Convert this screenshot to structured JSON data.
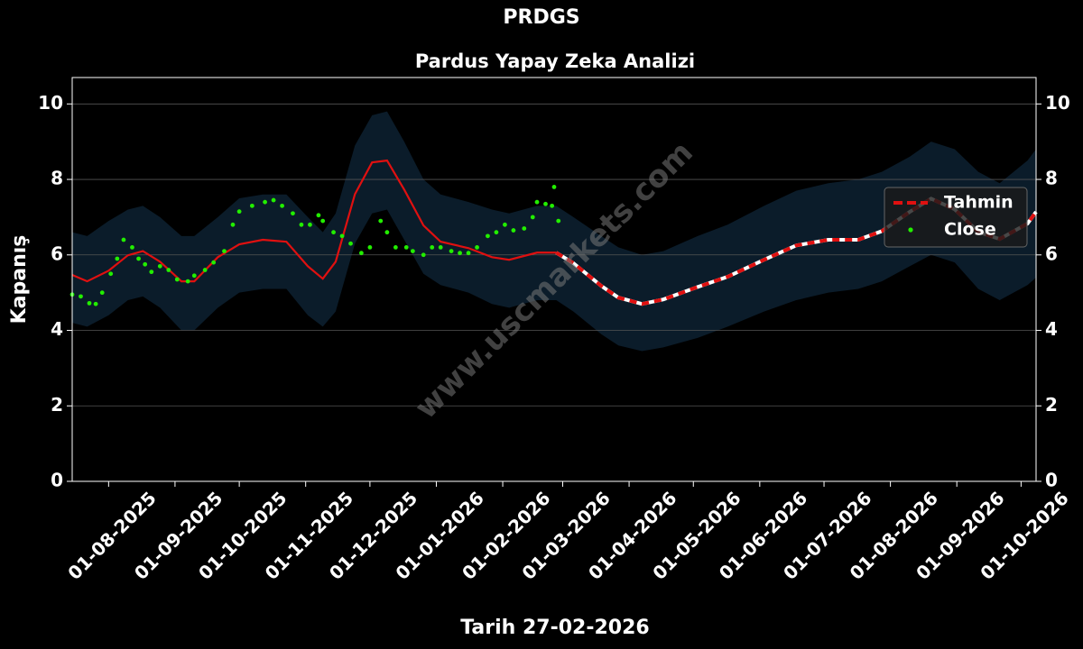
{
  "chart_data": {
    "type": "line",
    "title": "PRDGS",
    "subtitle": "Pardus Yapay Zeka Analizi",
    "xlabel": "Tarih 27-02-2026",
    "ylabel": "Kapanış",
    "watermark": "www.uscmarkets.com",
    "background": "#000000",
    "grid": true,
    "legend": "upper right",
    "xlim": [
      "2025-07-15",
      "2026-10-08"
    ],
    "xticks": [
      {
        "value": "2025-08-01",
        "label": "01-08-2025"
      },
      {
        "value": "2025-09-01",
        "label": "01-09-2025"
      },
      {
        "value": "2025-10-01",
        "label": "01-10-2025"
      },
      {
        "value": "2025-11-01",
        "label": "01-11-2025"
      },
      {
        "value": "2025-12-01",
        "label": "01-12-2025"
      },
      {
        "value": "2026-01-01",
        "label": "01-01-2026"
      },
      {
        "value": "2026-02-01",
        "label": "01-02-2026"
      },
      {
        "value": "2026-03-01",
        "label": "01-03-2026"
      },
      {
        "value": "2026-04-01",
        "label": "01-04-2026"
      },
      {
        "value": "2026-05-01",
        "label": "01-05-2026"
      },
      {
        "value": "2026-06-01",
        "label": "01-06-2026"
      },
      {
        "value": "2026-07-01",
        "label": "01-07-2026"
      },
      {
        "value": "2026-08-01",
        "label": "01-08-2026"
      },
      {
        "value": "2026-09-01",
        "label": "01-09-2026"
      },
      {
        "value": "2026-10-01",
        "label": "01-10-2026"
      }
    ],
    "ylim": [
      0,
      10.7
    ],
    "yticks": [
      0,
      2,
      4,
      6,
      8,
      10
    ],
    "band": {
      "color": "#0b1c2a",
      "x": [
        "2025-07-15",
        "2025-07-22",
        "2025-08-01",
        "2025-08-10",
        "2025-08-17",
        "2025-08-25",
        "2025-09-04",
        "2025-09-10",
        "2025-09-21",
        "2025-10-01",
        "2025-10-12",
        "2025-10-23",
        "2025-11-02",
        "2025-11-09",
        "2025-11-15",
        "2025-11-24",
        "2025-12-02",
        "2025-12-09",
        "2025-12-17",
        "2025-12-26",
        "2026-01-03",
        "2026-01-16",
        "2026-01-27",
        "2026-02-04",
        "2026-02-17",
        "2026-02-26",
        "2026-03-06",
        "2026-03-19",
        "2026-03-27",
        "2026-04-07",
        "2026-04-17",
        "2026-05-03",
        "2026-05-17",
        "2026-06-03",
        "2026-06-18",
        "2026-07-03",
        "2026-07-17",
        "2026-07-28",
        "2026-08-10",
        "2026-08-20",
        "2026-08-31",
        "2026-09-11",
        "2026-09-21",
        "2026-10-04",
        "2026-10-08"
      ],
      "upper": [
        6.6,
        6.5,
        6.9,
        7.2,
        7.3,
        7.0,
        6.5,
        6.5,
        7.0,
        7.5,
        7.6,
        7.6,
        7.0,
        6.6,
        7.1,
        8.9,
        9.7,
        9.8,
        9.0,
        8.0,
        7.6,
        7.4,
        7.2,
        7.1,
        7.3,
        7.3,
        7.0,
        6.5,
        6.2,
        6.0,
        6.1,
        6.5,
        6.8,
        7.3,
        7.7,
        7.9,
        8.0,
        8.2,
        8.6,
        9.0,
        8.8,
        8.2,
        7.9,
        8.5,
        8.8
      ],
      "lower": [
        4.2,
        4.1,
        4.4,
        4.8,
        4.9,
        4.6,
        4.0,
        4.0,
        4.6,
        5.0,
        5.1,
        5.1,
        4.4,
        4.1,
        4.5,
        6.3,
        7.1,
        7.2,
        6.4,
        5.5,
        5.2,
        5.0,
        4.7,
        4.6,
        4.8,
        4.8,
        4.5,
        3.9,
        3.6,
        3.45,
        3.55,
        3.8,
        4.1,
        4.5,
        4.8,
        5.0,
        5.1,
        5.3,
        5.7,
        6.0,
        5.8,
        5.1,
        4.8,
        5.2,
        5.4
      ]
    },
    "series": [
      {
        "name": "Tahmin",
        "color": "#e01010",
        "x": [
          "2025-07-15",
          "2025-07-22",
          "2025-08-01",
          "2025-08-10",
          "2025-08-17",
          "2025-08-25",
          "2025-09-04",
          "2025-09-10",
          "2025-09-21",
          "2025-10-01",
          "2025-10-12",
          "2025-10-23",
          "2025-11-02",
          "2025-11-09",
          "2025-11-15",
          "2025-11-24",
          "2025-12-02",
          "2025-12-09",
          "2025-12-17",
          "2025-12-26",
          "2026-01-03",
          "2026-01-16",
          "2026-01-27",
          "2026-02-04",
          "2026-02-17",
          "2026-02-26",
          "2026-03-06",
          "2026-03-19",
          "2026-03-27",
          "2026-04-07",
          "2026-04-17",
          "2026-05-03",
          "2026-05-17",
          "2026-06-03",
          "2026-06-18",
          "2026-07-03",
          "2026-07-17",
          "2026-07-28",
          "2026-08-10",
          "2026-08-20",
          "2026-08-31",
          "2026-09-11",
          "2026-09-21",
          "2026-10-04",
          "2026-10-08"
        ],
        "values": [
          5.47,
          5.3,
          5.58,
          5.99,
          6.1,
          5.82,
          5.3,
          5.3,
          5.94,
          6.28,
          6.4,
          6.35,
          5.7,
          5.37,
          5.82,
          7.61,
          8.45,
          8.5,
          7.73,
          6.78,
          6.35,
          6.18,
          5.94,
          5.87,
          6.06,
          6.06,
          5.78,
          5.18,
          4.87,
          4.7,
          4.82,
          5.15,
          5.42,
          5.87,
          6.25,
          6.4,
          6.4,
          6.63,
          7.14,
          7.49,
          7.21,
          6.61,
          6.42,
          6.83,
          7.14
        ]
      },
      {
        "name": "Close",
        "color": "#22ee00",
        "x": [
          "2025-07-15",
          "2025-07-19",
          "2025-07-23",
          "2025-07-26",
          "2025-07-29",
          "2025-08-02",
          "2025-08-05",
          "2025-08-08",
          "2025-08-12",
          "2025-08-15",
          "2025-08-18",
          "2025-08-21",
          "2025-08-25",
          "2025-08-29",
          "2025-09-02",
          "2025-09-07",
          "2025-09-10",
          "2025-09-15",
          "2025-09-19",
          "2025-09-24",
          "2025-09-28",
          "2025-10-01",
          "2025-10-07",
          "2025-10-13",
          "2025-10-17",
          "2025-10-21",
          "2025-10-26",
          "2025-10-30",
          "2025-11-03",
          "2025-11-07",
          "2025-11-09",
          "2025-11-14",
          "2025-11-18",
          "2025-11-22",
          "2025-11-27",
          "2025-12-01",
          "2025-12-06",
          "2025-12-09",
          "2025-12-13",
          "2025-12-18",
          "2025-12-21",
          "2025-12-26",
          "2025-12-30",
          "2026-01-03",
          "2026-01-08",
          "2026-01-12",
          "2026-01-16",
          "2026-01-20",
          "2026-01-25",
          "2026-01-29",
          "2026-02-02",
          "2026-02-06",
          "2026-02-11",
          "2026-02-15",
          "2026-02-17",
          "2026-02-21",
          "2026-02-24",
          "2026-02-25",
          "2026-02-27"
        ],
        "values": [
          4.95,
          4.9,
          4.72,
          4.7,
          5.0,
          5.5,
          5.9,
          6.4,
          6.2,
          5.9,
          5.75,
          5.55,
          5.7,
          5.6,
          5.35,
          5.3,
          5.45,
          5.6,
          5.8,
          6.1,
          6.8,
          7.15,
          7.3,
          7.4,
          7.45,
          7.3,
          7.1,
          6.8,
          6.8,
          7.05,
          6.9,
          6.6,
          6.5,
          6.3,
          6.05,
          6.2,
          6.9,
          6.6,
          6.2,
          6.2,
          6.1,
          6.0,
          6.2,
          6.2,
          6.1,
          6.05,
          6.05,
          6.2,
          6.5,
          6.6,
          6.8,
          6.65,
          6.7,
          7.0,
          7.4,
          7.35,
          7.3,
          7.8,
          6.9
        ]
      }
    ]
  }
}
